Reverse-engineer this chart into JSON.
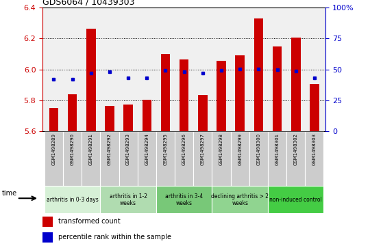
{
  "title": "GDS6064 / 10439303",
  "samples": [
    "GSM1498289",
    "GSM1498290",
    "GSM1498291",
    "GSM1498292",
    "GSM1498293",
    "GSM1498294",
    "GSM1498295",
    "GSM1498296",
    "GSM1498297",
    "GSM1498298",
    "GSM1498299",
    "GSM1498300",
    "GSM1498301",
    "GSM1498302",
    "GSM1498303"
  ],
  "red_values": [
    5.75,
    5.84,
    6.265,
    5.765,
    5.775,
    5.805,
    6.1,
    6.065,
    5.835,
    6.055,
    6.09,
    6.33,
    6.15,
    6.205,
    5.905
  ],
  "blue_values": [
    5.935,
    5.935,
    5.975,
    5.985,
    5.945,
    5.945,
    5.995,
    5.985,
    5.975,
    5.995,
    6.005,
    6.005,
    6.0,
    5.99,
    5.945
  ],
  "ylim_left": [
    5.6,
    6.4
  ],
  "ylim_right": [
    0,
    100
  ],
  "yticks_left": [
    5.6,
    5.8,
    6.0,
    6.2,
    6.4
  ],
  "yticks_right": [
    0,
    25,
    50,
    75,
    100
  ],
  "bar_color": "#cc0000",
  "dot_color": "#0000cc",
  "plot_bg_color": "#f0f0f0",
  "sample_bg_color": "#cccccc",
  "tick_color_left": "#cc0000",
  "tick_color_right": "#0000cc",
  "legend_red": "transformed count",
  "legend_blue": "percentile rank within the sample",
  "bar_width": 0.5,
  "groups": [
    {
      "label": "arthritis in 0-3 days",
      "start": 0,
      "end": 3,
      "color": "#d6f0d6"
    },
    {
      "label": "arthritis in 1-2\nweeks",
      "start": 3,
      "end": 6,
      "color": "#b0dcb0"
    },
    {
      "label": "arthritis in 3-4\nweeks",
      "start": 6,
      "end": 9,
      "color": "#78c878"
    },
    {
      "label": "declining arthritis > 2\nweeks",
      "start": 9,
      "end": 12,
      "color": "#90d490"
    },
    {
      "label": "non-induced control",
      "start": 12,
      "end": 15,
      "color": "#44cc44"
    }
  ]
}
